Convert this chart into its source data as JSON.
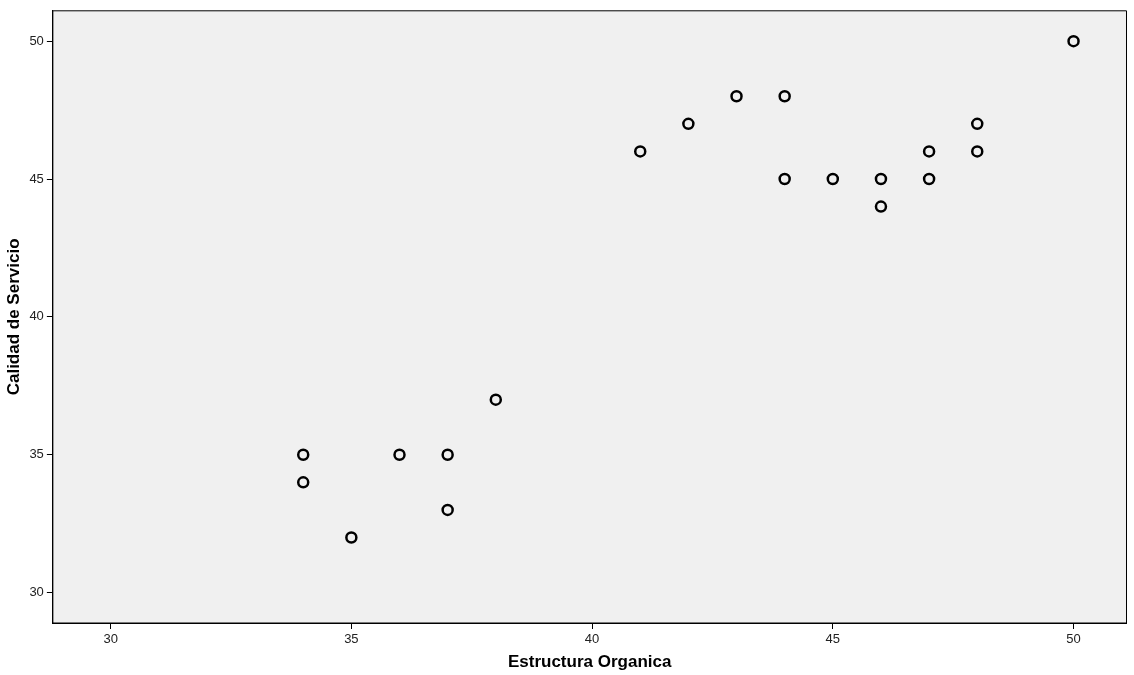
{
  "chart_data": {
    "type": "scatter",
    "xlabel": "Estructura Organica",
    "ylabel": "Calidad de Servicio",
    "x": [
      34,
      34,
      35,
      36,
      37,
      37,
      38,
      41,
      42,
      43,
      44,
      44,
      45,
      46,
      46,
      47,
      47,
      48,
      48,
      50
    ],
    "series": [
      {
        "color": "#000000",
        "values": [
          35,
          34,
          32,
          35,
          35,
          33,
          37,
          46,
          47,
          48,
          48,
          45,
          45,
          45,
          44,
          46,
          45,
          47,
          46,
          50
        ]
      }
    ],
    "xlim": [
      28.8,
      51.1
    ],
    "ylim": [
      28.9,
      51.1
    ],
    "xticks": [
      30,
      35,
      40,
      45,
      50
    ],
    "yticks": [
      30,
      35,
      40,
      45,
      50
    ],
    "grid": false,
    "legend": false,
    "marker": "circle"
  }
}
